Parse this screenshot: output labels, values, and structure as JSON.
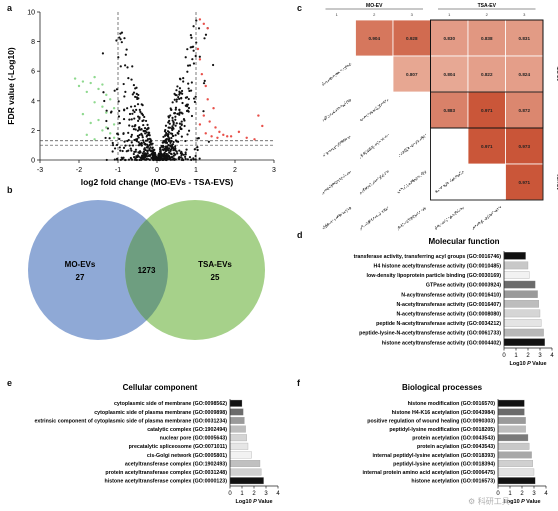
{
  "panels": {
    "a": "a",
    "b": "b",
    "c": "c",
    "d": "d",
    "e": "e",
    "f": "f"
  },
  "watermark": "⚙ 科研工具",
  "chart_data": [
    {
      "panel": "a",
      "type": "scatter",
      "title": "",
      "xlabel": "log2 fold change (MO-EVs - TSA-EVS)",
      "ylabel": "FDR value (-Log10)",
      "xlim": [
        -3,
        3
      ],
      "ylim": [
        0,
        10
      ],
      "xticks": [
        "-3",
        "-2",
        "-1",
        "0",
        "1",
        "2",
        "3"
      ],
      "yticks": [
        "0",
        "2",
        "4",
        "6",
        "8",
        "10"
      ],
      "vlines": [
        -1,
        1
      ],
      "hlines": [
        1.0,
        1.3
      ],
      "colors": {
        "neutral": "#111111",
        "down": "#8fd98f",
        "up": "#e8504a"
      },
      "down_points": [
        [
          -2.1,
          5.5
        ],
        [
          -1.9,
          5.3
        ],
        [
          -2.0,
          5.0
        ],
        [
          -1.8,
          4.6
        ],
        [
          -1.7,
          5.2
        ],
        [
          -1.6,
          5.6
        ],
        [
          -1.5,
          4.8
        ],
        [
          -1.4,
          5.1
        ],
        [
          -1.3,
          4.4
        ],
        [
          -1.2,
          4.1
        ],
        [
          -1.6,
          3.9
        ],
        [
          -1.4,
          3.6
        ],
        [
          -1.3,
          3.2
        ],
        [
          -1.1,
          3.5
        ],
        [
          -1.9,
          3.1
        ],
        [
          -1.7,
          2.5
        ],
        [
          -1.5,
          2.7
        ],
        [
          -1.3,
          2.2
        ],
        [
          -1.2,
          1.8
        ],
        [
          -1.1,
          2.4
        ],
        [
          -1.4,
          2.0
        ],
        [
          -1.8,
          1.7
        ],
        [
          -1.1,
          1.5
        ],
        [
          -1.6,
          1.4
        ]
      ],
      "up_points": [
        [
          1.1,
          9.5
        ],
        [
          1.2,
          9.2
        ],
        [
          1.3,
          8.9
        ],
        [
          1.05,
          7.5
        ],
        [
          1.1,
          6.8
        ],
        [
          1.15,
          5.8
        ],
        [
          1.25,
          5.0
        ],
        [
          1.3,
          4.1
        ],
        [
          1.45,
          3.5
        ],
        [
          1.2,
          3.0
        ],
        [
          1.35,
          2.6
        ],
        [
          1.5,
          2.2
        ],
        [
          1.1,
          2.4
        ],
        [
          1.6,
          1.9
        ],
        [
          1.7,
          1.7
        ],
        [
          1.8,
          1.6
        ],
        [
          1.55,
          1.5
        ],
        [
          1.9,
          1.6
        ],
        [
          2.1,
          1.9
        ],
        [
          2.3,
          1.5
        ],
        [
          2.7,
          2.3
        ],
        [
          2.6,
          3.0
        ],
        [
          2.5,
          1.4
        ],
        [
          1.25,
          1.8
        ],
        [
          1.4,
          1.6
        ]
      ]
    },
    {
      "panel": "b",
      "type": "venn",
      "sets": [
        {
          "name": "MO-EVs",
          "unique": "27",
          "color": "#8fa9d6"
        },
        {
          "name": "TSA-EVs",
          "unique": "25",
          "color": "#a6d18a"
        }
      ],
      "intersection": "1273",
      "intersection_color": "#6e9e80"
    },
    {
      "panel": "c",
      "type": "heatmap",
      "top_groups": [
        "MO-EV",
        "TSA-EV"
      ],
      "col_labels": [
        "1",
        "2",
        "3",
        "1",
        "2",
        "3"
      ],
      "side_groups": [
        "MO-EV",
        "TSA-EV"
      ],
      "cells": [
        [
          0,
          1,
          "0.904"
        ],
        [
          0,
          2,
          "0.928"
        ],
        [
          0,
          3,
          "0.830"
        ],
        [
          0,
          4,
          "0.838"
        ],
        [
          0,
          5,
          "0.831"
        ],
        [
          1,
          2,
          "0.807"
        ],
        [
          1,
          3,
          "0.804"
        ],
        [
          1,
          4,
          "0.822"
        ],
        [
          1,
          5,
          "0.824"
        ],
        [
          2,
          3,
          "0.883"
        ],
        [
          2,
          4,
          "0.971"
        ],
        [
          2,
          5,
          "0.872"
        ],
        [
          3,
          4,
          "0.971"
        ],
        [
          3,
          5,
          "0.973"
        ],
        [
          4,
          5,
          "0.971"
        ]
      ]
    },
    {
      "panel": "d",
      "type": "bar",
      "title": "Molecular function",
      "xlabel": "Log10 P Value",
      "xlim": [
        0,
        4
      ],
      "xticks": [
        "0",
        "1",
        "2",
        "3",
        "4"
      ],
      "categories": [
        "transferase activity, transferring acyl groups (GO:0016746)",
        "H4 histone acetyltransferase activity (GO:0010485)",
        "low-density lipoprotein particle binding (GO:0030169)",
        "GTPase activity (GO:0003924)",
        "N-acyltransferase activity (GO:0016410)",
        "N-acetyltransferase activity (GO:0016407)",
        "N-acetyltransferase activity (GO:0008080)",
        "peptide N-acetyltransferase activity (GO:0034212)",
        "peptide-lysine-N-acetyltransferase activity (GO:0061733)",
        "histone acetyltransferase activity (GO:0004402)"
      ],
      "values": [
        1.8,
        2.0,
        2.1,
        2.6,
        2.8,
        2.9,
        3.0,
        3.1,
        3.3,
        3.4
      ],
      "colors": [
        "#111111",
        "#c8c8c8",
        "#f2f2f2",
        "#6b6b6b",
        "#9a9a9a",
        "#bdbdbd",
        "#d5d5d5",
        "#e4e4e4",
        "#b8b8b8",
        "#111111"
      ]
    },
    {
      "panel": "e",
      "type": "bar",
      "title": "Cellular component",
      "xlabel": "Log10 P Value",
      "xlim": [
        0,
        4
      ],
      "xticks": [
        "0",
        "1",
        "2",
        "3",
        "4"
      ],
      "categories": [
        "cytoplasmic side of membrane (GO:0098562)",
        "cytoplasmic side of plasma membrane (GO:0009898)",
        "extrinsic component of cytoplasmic side of plasma membrane (GO:0031234)",
        "catalytic complex (GO:1902494)",
        "nuclear pore (GO:0005643)",
        "precatalytic spliceosome (GO:0071011)",
        "cis-Golgi network (GO:0005801)",
        "acetyltransferase complex (GO:1902493)",
        "protein acetyltransferase complex (GO:0031248)",
        "histone acetyltransferase complex (GO:0000123)"
      ],
      "values": [
        1.0,
        1.1,
        1.2,
        1.3,
        1.4,
        1.5,
        1.8,
        2.5,
        2.6,
        2.8
      ],
      "colors": [
        "#111111",
        "#6b6b6b",
        "#9a9a9a",
        "#bdbdbd",
        "#d5d5d5",
        "#e6e6e6",
        "#f2f2f2",
        "#c0c0c0",
        "#d0d0d0",
        "#111111"
      ]
    },
    {
      "panel": "f",
      "type": "bar",
      "title": "Biological processes",
      "xlabel": "Log10 P Value",
      "xlim": [
        0,
        4
      ],
      "xticks": [
        "0",
        "1",
        "2",
        "3",
        "4"
      ],
      "categories": [
        "histone modification (GO:0016570)",
        "histone H4-K16 acetylation (GO:0043984)",
        "positive regulation of wound healing (GO:0090303)",
        "peptidyl-lysine modification (GO:0018205)",
        "protein acetylation (GO:0043543)",
        "protein acylation (GO:0043543)",
        "internal peptidyl-lysine acetylation (GO:0018393)",
        "peptidyl-lysine acetylation (GO:0018394)",
        "internal protein amino acid acetylation (GO:0006475)",
        "histone acetylation (GO:0016573)"
      ],
      "values": [
        2.2,
        2.2,
        2.3,
        2.3,
        2.5,
        2.6,
        2.8,
        2.9,
        3.0,
        3.1
      ],
      "colors": [
        "#111111",
        "#6b6b6b",
        "#9a9a9a",
        "#bdbdbd",
        "#7a7a7a",
        "#c8c8c8",
        "#a8a8a8",
        "#d0d0d0",
        "#e2e2e2",
        "#111111"
      ]
    }
  ]
}
